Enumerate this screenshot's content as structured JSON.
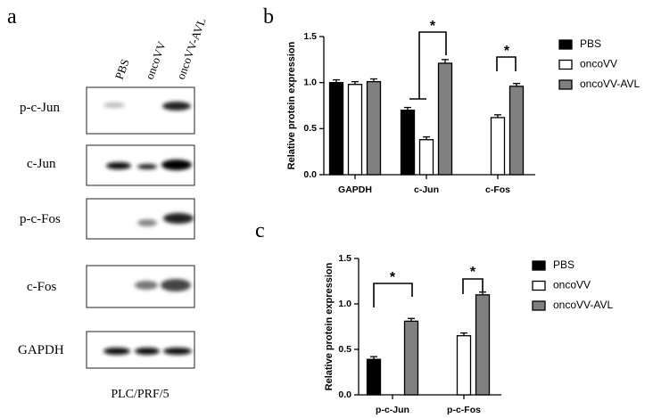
{
  "blot": {
    "panel": "a",
    "lanes": [
      "PBS",
      "oncoVV",
      "oncoVV-AVL"
    ],
    "rows": [
      "p-c-Jun",
      "c-Jun",
      "p-c-Fos",
      "c-Fos",
      "GAPDH"
    ],
    "cell_line": "PLC/PRF/5"
  },
  "chart_data": [
    {
      "type": "bar",
      "panel": "b",
      "ylabel": "Relative protein expression",
      "categories": [
        "GAPDH",
        "c-Jun",
        "c-Fos"
      ],
      "series": [
        {
          "name": "PBS",
          "color": "#000000",
          "values": [
            1.0,
            0.7,
            null
          ],
          "errors": [
            0.03,
            0.03,
            null
          ]
        },
        {
          "name": "oncoVV",
          "color": "#ffffff",
          "values": [
            0.98,
            0.38,
            0.62
          ],
          "errors": [
            0.03,
            0.03,
            0.03
          ]
        },
        {
          "name": "oncoVV-AVL",
          "color": "#808080",
          "values": [
            1.01,
            1.21,
            0.96
          ],
          "errors": [
            0.03,
            0.04,
            0.03
          ]
        }
      ],
      "ylim": [
        0,
        1.5
      ],
      "yticks": [
        {
          "value": 0,
          "label": "0.0"
        },
        0.5,
        {
          "value": 1,
          "label": "1.0"
        },
        {
          "value": 1.5,
          "label": "1.5"
        }
      ],
      "annotations": [
        "*",
        "*"
      ]
    },
    {
      "type": "bar",
      "panel": "c",
      "ylabel": "Relative protein expression",
      "categories": [
        "p-c-Jun",
        "p-c-Fos"
      ],
      "series": [
        {
          "name": "PBS",
          "color": "#000000",
          "values": [
            0.39,
            null
          ],
          "errors": [
            0.03,
            null
          ]
        },
        {
          "name": "oncoVV",
          "color": "#ffffff",
          "values": [
            null,
            0.65
          ],
          "errors": [
            null,
            0.03
          ]
        },
        {
          "name": "oncoVV-AVL",
          "color": "#808080",
          "values": [
            0.81,
            1.1
          ],
          "errors": [
            0.03,
            0.03
          ]
        }
      ],
      "ylim": [
        0,
        1.5
      ],
      "yticks": [
        {
          "value": 0,
          "label": "0.0"
        },
        0.5,
        {
          "value": 1,
          "label": "1.0"
        },
        {
          "value": 1.5,
          "label": "1.5"
        }
      ],
      "annotations": [
        "*",
        "*"
      ]
    }
  ]
}
